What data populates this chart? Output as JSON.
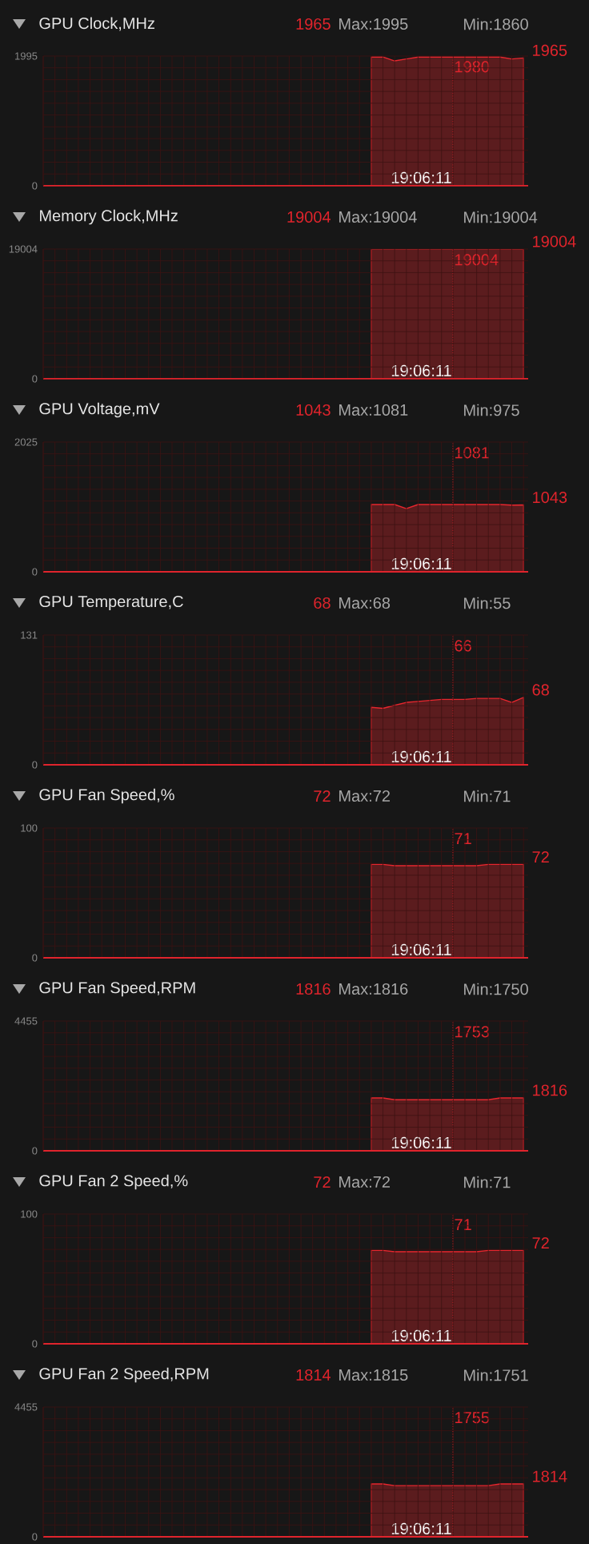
{
  "chart_data": [
    {
      "type": "area",
      "title": "GPU Clock,MHz",
      "annotations": [
        "1965",
        "Max:1995",
        "Min:1860",
        "19:06:11",
        "1980",
        "1965"
      ],
      "categories": [
        null,
        null,
        null,
        null,
        null,
        null,
        null,
        null,
        null,
        null,
        null,
        null,
        null,
        null,
        null,
        null,
        null,
        null,
        null,
        null,
        null,
        null,
        null,
        null,
        null,
        null,
        null,
        null,
        null,
        null,
        null,
        null,
        null,
        null,
        null,
        null,
        null,
        null,
        null,
        null,
        null,
        null
      ],
      "series": [
        {
          "color": "#e8262e",
          "values": [
            null,
            null,
            null,
            null,
            null,
            null,
            null,
            null,
            null,
            null,
            null,
            null,
            null,
            null,
            null,
            null,
            null,
            null,
            null,
            null,
            null,
            null,
            null,
            null,
            null,
            null,
            null,
            null,
            1980,
            1980,
            1920,
            1950,
            1980,
            1980,
            1980,
            1980,
            1980,
            1980,
            1980,
            1980,
            1950,
            1965
          ]
        }
      ],
      "ylim": [
        0,
        1995
      ],
      "yticks": [
        0,
        1995
      ],
      "grid": true,
      "tick_labels": "y"
    },
    {
      "type": "area",
      "title": "Memory Clock,MHz",
      "annotations": [
        "19004",
        "Max:19004",
        "Min:19004",
        "19:06:11",
        "19004",
        "19004"
      ],
      "categories": [
        null,
        null,
        null,
        null,
        null,
        null,
        null,
        null,
        null,
        null,
        null,
        null,
        null,
        null,
        null,
        null,
        null,
        null,
        null,
        null,
        null,
        null,
        null,
        null,
        null,
        null,
        null,
        null,
        null,
        null,
        null,
        null,
        null,
        null,
        null,
        null,
        null,
        null,
        null,
        null,
        null,
        null
      ],
      "series": [
        {
          "color": "#e8262e",
          "values": [
            null,
            null,
            null,
            null,
            null,
            null,
            null,
            null,
            null,
            null,
            null,
            null,
            null,
            null,
            null,
            null,
            null,
            null,
            null,
            null,
            null,
            null,
            null,
            null,
            null,
            null,
            null,
            null,
            19004,
            19004,
            19004,
            19004,
            19004,
            19004,
            19004,
            19004,
            19004,
            19004,
            19004,
            19004,
            19004,
            19004
          ]
        }
      ],
      "ylim": [
        0,
        19004
      ],
      "yticks": [
        0,
        19004
      ],
      "grid": true,
      "tick_labels": "y"
    },
    {
      "type": "area",
      "title": "GPU Voltage,mV",
      "annotations": [
        "1043",
        "Max:1081",
        "Min:975",
        "19:06:11",
        "1081",
        "1043"
      ],
      "categories": [
        null,
        null,
        null,
        null,
        null,
        null,
        null,
        null,
        null,
        null,
        null,
        null,
        null,
        null,
        null,
        null,
        null,
        null,
        null,
        null,
        null,
        null,
        null,
        null,
        null,
        null,
        null,
        null,
        null,
        null,
        null,
        null,
        null,
        null,
        null,
        null,
        null,
        null,
        null,
        null,
        null,
        null
      ],
      "series": [
        {
          "color": "#e8262e",
          "values": [
            null,
            null,
            null,
            null,
            null,
            null,
            null,
            null,
            null,
            null,
            null,
            null,
            null,
            null,
            null,
            null,
            null,
            null,
            null,
            null,
            null,
            null,
            null,
            null,
            null,
            null,
            null,
            null,
            1050,
            1050,
            1050,
            985,
            1050,
            1050,
            1050,
            1050,
            1050,
            1050,
            1050,
            1050,
            1040,
            1043
          ]
        }
      ],
      "ylim": [
        0,
        2025
      ],
      "yticks": [
        0,
        2025
      ],
      "grid": true,
      "tick_labels": "y"
    },
    {
      "type": "area",
      "title": "GPU Temperature,C",
      "annotations": [
        "68",
        "Max:68",
        "Min:55",
        "19:06:11",
        "66",
        "68"
      ],
      "categories": [
        null,
        null,
        null,
        null,
        null,
        null,
        null,
        null,
        null,
        null,
        null,
        null,
        null,
        null,
        null,
        null,
        null,
        null,
        null,
        null,
        null,
        null,
        null,
        null,
        null,
        null,
        null,
        null,
        null,
        null,
        null,
        null,
        null,
        null,
        null,
        null,
        null,
        null,
        null,
        null,
        null,
        null
      ],
      "series": [
        {
          "color": "#e8262e",
          "values": [
            null,
            null,
            null,
            null,
            null,
            null,
            null,
            null,
            null,
            null,
            null,
            null,
            null,
            null,
            null,
            null,
            null,
            null,
            null,
            null,
            null,
            null,
            null,
            null,
            null,
            null,
            null,
            null,
            58,
            57,
            60,
            63,
            64,
            65,
            66,
            66,
            66,
            67,
            67,
            67,
            63,
            68
          ]
        }
      ],
      "ylim": [
        0,
        131
      ],
      "yticks": [
        0,
        131
      ],
      "grid": true,
      "tick_labels": "y"
    },
    {
      "type": "area",
      "title": "GPU Fan Speed,%",
      "annotations": [
        "72",
        "Max:72",
        "Min:71",
        "19:06:11",
        "71",
        "72"
      ],
      "categories": [
        null,
        null,
        null,
        null,
        null,
        null,
        null,
        null,
        null,
        null,
        null,
        null,
        null,
        null,
        null,
        null,
        null,
        null,
        null,
        null,
        null,
        null,
        null,
        null,
        null,
        null,
        null,
        null,
        null,
        null,
        null,
        null,
        null,
        null,
        null,
        null,
        null,
        null,
        null,
        null,
        null,
        null
      ],
      "series": [
        {
          "color": "#e8262e",
          "values": [
            null,
            null,
            null,
            null,
            null,
            null,
            null,
            null,
            null,
            null,
            null,
            null,
            null,
            null,
            null,
            null,
            null,
            null,
            null,
            null,
            null,
            null,
            null,
            null,
            null,
            null,
            null,
            null,
            72,
            72,
            71,
            71,
            71,
            71,
            71,
            71,
            71,
            71,
            72,
            72,
            72,
            72
          ]
        }
      ],
      "ylim": [
        0,
        100
      ],
      "yticks": [
        0,
        100
      ],
      "grid": true,
      "tick_labels": "y"
    },
    {
      "type": "area",
      "title": "GPU Fan Speed,RPM",
      "annotations": [
        "1816",
        "Max:1816",
        "Min:1750",
        "19:06:11",
        "1753",
        "1816"
      ],
      "categories": [
        null,
        null,
        null,
        null,
        null,
        null,
        null,
        null,
        null,
        null,
        null,
        null,
        null,
        null,
        null,
        null,
        null,
        null,
        null,
        null,
        null,
        null,
        null,
        null,
        null,
        null,
        null,
        null,
        null,
        null,
        null,
        null,
        null,
        null,
        null,
        null,
        null,
        null,
        null,
        null,
        null,
        null
      ],
      "series": [
        {
          "color": "#e8262e",
          "values": [
            null,
            null,
            null,
            null,
            null,
            null,
            null,
            null,
            null,
            null,
            null,
            null,
            null,
            null,
            null,
            null,
            null,
            null,
            null,
            null,
            null,
            null,
            null,
            null,
            null,
            null,
            null,
            null,
            1816,
            1816,
            1753,
            1753,
            1753,
            1753,
            1753,
            1753,
            1753,
            1753,
            1753,
            1816,
            1816,
            1816
          ]
        }
      ],
      "ylim": [
        0,
        4455
      ],
      "yticks": [
        0,
        4455
      ],
      "grid": true,
      "tick_labels": "y"
    },
    {
      "type": "area",
      "title": "GPU Fan 2 Speed,%",
      "annotations": [
        "72",
        "Max:72",
        "Min:71",
        "19:06:11",
        "71",
        "72"
      ],
      "categories": [
        null,
        null,
        null,
        null,
        null,
        null,
        null,
        null,
        null,
        null,
        null,
        null,
        null,
        null,
        null,
        null,
        null,
        null,
        null,
        null,
        null,
        null,
        null,
        null,
        null,
        null,
        null,
        null,
        null,
        null,
        null,
        null,
        null,
        null,
        null,
        null,
        null,
        null,
        null,
        null,
        null,
        null
      ],
      "series": [
        {
          "color": "#e8262e",
          "values": [
            null,
            null,
            null,
            null,
            null,
            null,
            null,
            null,
            null,
            null,
            null,
            null,
            null,
            null,
            null,
            null,
            null,
            null,
            null,
            null,
            null,
            null,
            null,
            null,
            null,
            null,
            null,
            null,
            72,
            72,
            71,
            71,
            71,
            71,
            71,
            71,
            71,
            71,
            72,
            72,
            72,
            72
          ]
        }
      ],
      "ylim": [
        0,
        100
      ],
      "yticks": [
        0,
        100
      ],
      "grid": true,
      "tick_labels": "y"
    },
    {
      "type": "area",
      "title": "GPU Fan 2 Speed,RPM",
      "annotations": [
        "1814",
        "Max:1815",
        "Min:1751",
        "19:06:11",
        "1755",
        "1814"
      ],
      "categories": [
        null,
        null,
        null,
        null,
        null,
        null,
        null,
        null,
        null,
        null,
        null,
        null,
        null,
        null,
        null,
        null,
        null,
        null,
        null,
        null,
        null,
        null,
        null,
        null,
        null,
        null,
        null,
        null,
        null,
        null,
        null,
        null,
        null,
        null,
        null,
        null,
        null,
        null,
        null,
        null,
        null,
        null
      ],
      "series": [
        {
          "color": "#e8262e",
          "values": [
            null,
            null,
            null,
            null,
            null,
            null,
            null,
            null,
            null,
            null,
            null,
            null,
            null,
            null,
            null,
            null,
            null,
            null,
            null,
            null,
            null,
            null,
            null,
            null,
            null,
            null,
            null,
            null,
            1814,
            1814,
            1755,
            1755,
            1755,
            1755,
            1755,
            1755,
            1755,
            1755,
            1755,
            1814,
            1814,
            1814
          ]
        }
      ],
      "ylim": [
        0,
        4455
      ],
      "yticks": [
        0,
        4455
      ],
      "grid": true,
      "tick_labels": "y"
    }
  ]
}
